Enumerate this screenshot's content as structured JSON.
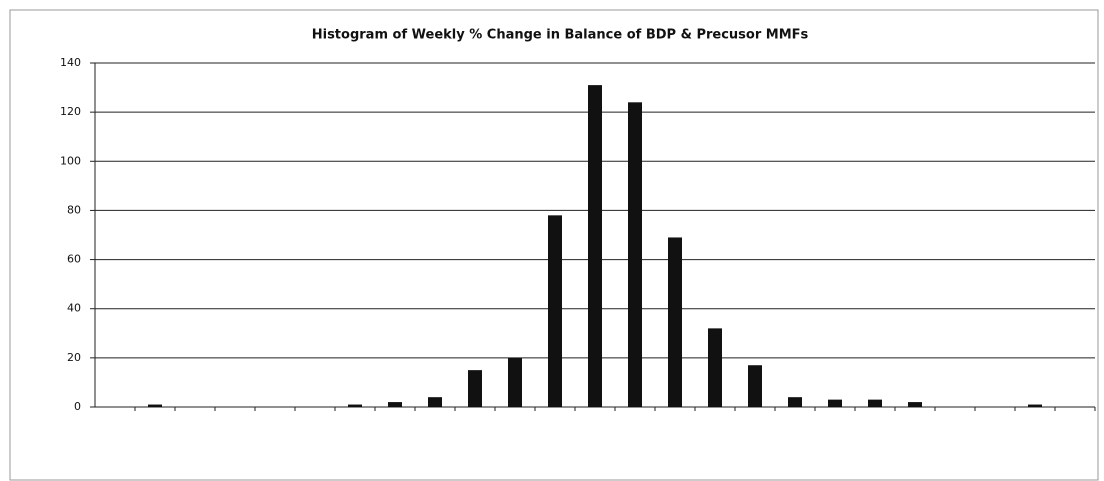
{
  "chart_data": {
    "type": "bar",
    "title": "Histogram of Weekly % Change in Balance of BDP & Precusor MMFs",
    "categories": [
      null,
      null,
      null,
      null,
      null,
      null,
      null,
      null,
      null,
      null,
      null,
      null,
      null,
      null,
      null,
      null,
      null,
      null,
      null,
      null,
      null,
      null,
      null,
      null,
      null
    ],
    "values": [
      0,
      1,
      0,
      0,
      0,
      0,
      1,
      2,
      4,
      15,
      20,
      78,
      131,
      124,
      69,
      32,
      17,
      4,
      3,
      3,
      2,
      0,
      0,
      1,
      0
    ],
    "color": "#111111",
    "ylim": [
      0,
      140
    ],
    "yticks": [
      0,
      20,
      40,
      60,
      80,
      100,
      120,
      140
    ],
    "grid": true
  }
}
